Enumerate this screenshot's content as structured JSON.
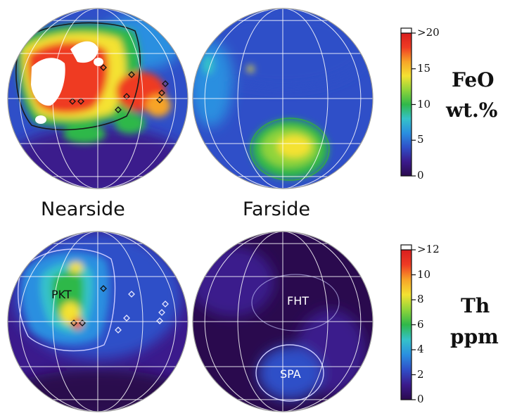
{
  "view_labels": {
    "nearside": "Nearside",
    "farside": "Farside"
  },
  "feo": {
    "title_line1": "FeO",
    "title_line2": "wt.%",
    "tick_labels": [
      ">20",
      "15",
      "10",
      "5",
      "0"
    ],
    "tick_values": [
      20,
      15,
      10,
      5,
      0
    ],
    "range": [
      0,
      20
    ]
  },
  "th": {
    "title_line1": "Th",
    "title_line2": "ppm",
    "tick_labels": [
      ">12",
      "10",
      "8",
      "6",
      "4",
      "2",
      "0"
    ],
    "tick_values": [
      12,
      10,
      8,
      6,
      4,
      2,
      0
    ],
    "range": [
      0,
      12
    ]
  },
  "regions": {
    "pkt": "PKT",
    "fht": "FHT",
    "spa": "SPA"
  },
  "colormap": [
    "#2a0a4e",
    "#3b1a8c",
    "#2f4fc8",
    "#2a8fe0",
    "#35c2c9",
    "#2fb84a",
    "#8fd43a",
    "#f4e232",
    "#f7a428",
    "#ef3b24",
    "#d91e1e"
  ],
  "colors": {
    "background": "#ffffff",
    "grid": "#ffffff",
    "outline_feo": "#1a1a1a",
    "outline_th": "#c9c9ff",
    "text": "#111111"
  }
}
